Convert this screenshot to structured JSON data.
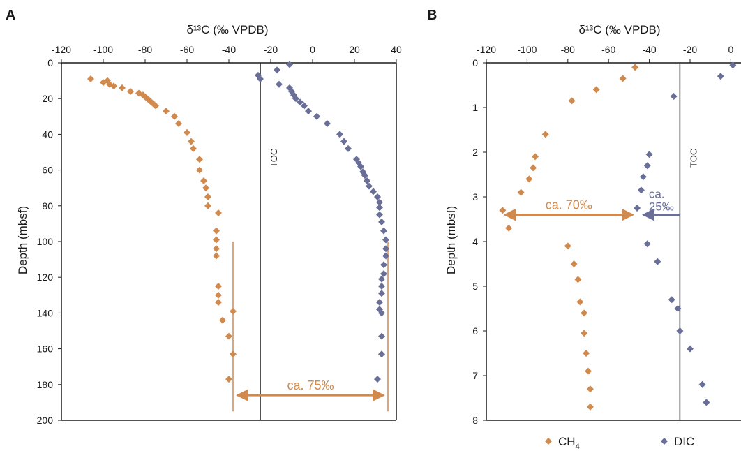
{
  "colors": {
    "ch4": "#d08a4e",
    "dic": "#6a6f98",
    "axis": "#1a1a1a"
  },
  "chart_data": [
    {
      "type": "scatter",
      "panel_label": "A",
      "xlabel": "δ¹³C (‰ VPDB)",
      "ylabel": "Depth (mbsf)",
      "xlim": [
        -120,
        40
      ],
      "ylim": [
        0,
        200
      ],
      "x_ticks": [
        "-120",
        "-100",
        "-80",
        "-60",
        "-40",
        "-20",
        "0",
        "20",
        "40"
      ],
      "y_ticks": [
        "0",
        "20",
        "40",
        "60",
        "80",
        "100",
        "120",
        "140",
        "160",
        "180",
        "200"
      ],
      "x_axis_position": "top",
      "y_axis_inverted": true,
      "reference_line": {
        "label": "TOC",
        "x": -25
      },
      "series": [
        {
          "key": "ch4",
          "points": [
            [
              -106,
              9
            ],
            [
              -98,
              10
            ],
            [
              -100,
              11
            ],
            [
              -97,
              12
            ],
            [
              -95,
              13
            ],
            [
              -91,
              14
            ],
            [
              -87,
              16
            ],
            [
              -83,
              17
            ],
            [
              -81,
              18
            ],
            [
              -80,
              19
            ],
            [
              -79,
              20
            ],
            [
              -78,
              21
            ],
            [
              -77,
              22
            ],
            [
              -76,
              23
            ],
            [
              -75,
              24
            ],
            [
              -70,
              27
            ],
            [
              -66,
              30
            ],
            [
              -64,
              34
            ],
            [
              -60,
              39
            ],
            [
              -58,
              44
            ],
            [
              -57,
              48
            ],
            [
              -54,
              54
            ],
            [
              -54,
              60
            ],
            [
              -52,
              66
            ],
            [
              -51,
              70
            ],
            [
              -50,
              75
            ],
            [
              -50,
              80
            ],
            [
              -45,
              84
            ],
            [
              -46,
              94
            ],
            [
              -46,
              99
            ],
            [
              -46,
              104
            ],
            [
              -46,
              108
            ],
            [
              -45,
              125
            ],
            [
              -45,
              130
            ],
            [
              -45,
              134
            ],
            [
              -38,
              139
            ],
            [
              -43,
              144
            ],
            [
              -40,
              153
            ],
            [
              -38,
              163
            ],
            [
              -40,
              177
            ]
          ]
        },
        {
          "key": "dic",
          "points": [
            [
              -26,
              7
            ],
            [
              -25,
              9
            ],
            [
              -11,
              1
            ],
            [
              -17,
              4
            ],
            [
              -16,
              12
            ],
            [
              -11,
              14
            ],
            [
              -10,
              16
            ],
            [
              -9,
              18
            ],
            [
              -8,
              20
            ],
            [
              -6,
              22
            ],
            [
              -4,
              24
            ],
            [
              -2,
              27
            ],
            [
              2,
              30
            ],
            [
              7,
              34
            ],
            [
              13,
              40
            ],
            [
              15,
              44
            ],
            [
              17,
              48
            ],
            [
              21,
              54
            ],
            [
              22,
              56
            ],
            [
              23,
              58
            ],
            [
              24,
              61
            ],
            [
              25,
              63
            ],
            [
              26,
              66
            ],
            [
              27,
              69
            ],
            [
              29,
              72
            ],
            [
              31,
              75
            ],
            [
              32,
              78
            ],
            [
              32,
              81
            ],
            [
              32,
              85
            ],
            [
              33,
              89
            ],
            [
              34,
              94
            ],
            [
              35,
              99
            ],
            [
              35,
              104
            ],
            [
              35,
              108
            ],
            [
              34,
              113
            ],
            [
              34,
              118
            ],
            [
              33,
              121
            ],
            [
              33,
              125
            ],
            [
              33,
              129
            ],
            [
              32,
              134
            ],
            [
              32,
              138
            ],
            [
              33,
              140
            ],
            [
              33,
              153
            ],
            [
              33,
              163
            ],
            [
              31,
              177
            ]
          ]
        }
      ],
      "range_lines": [
        {
          "x": -38,
          "y": [
            100,
            195
          ]
        },
        {
          "x": 36,
          "y": [
            100,
            195
          ]
        }
      ],
      "annotations": [
        {
          "text": "ca. 75‰",
          "x_from": -36,
          "x_to": 34,
          "y": 186
        }
      ]
    },
    {
      "type": "scatter",
      "panel_label": "B",
      "xlabel": "δ¹³C (‰ VPDB)",
      "ylabel": "Depth (mbsf)",
      "xlim": [
        -120,
        5
      ],
      "ylim": [
        0,
        8
      ],
      "x_ticks": [
        "-120",
        "-100",
        "-80",
        "-60",
        "-40",
        "-20",
        "0"
      ],
      "y_ticks": [
        "0",
        "1",
        "2",
        "3",
        "4",
        "5",
        "6",
        "7",
        "8"
      ],
      "x_axis_position": "top",
      "y_axis_inverted": true,
      "reference_line": {
        "label": "TOC",
        "x": -25
      },
      "series": [
        {
          "key": "ch4",
          "points": [
            [
              -47,
              0.1
            ],
            [
              -53,
              0.35
            ],
            [
              -66,
              0.6
            ],
            [
              -78,
              0.85
            ],
            [
              -91,
              1.6
            ],
            [
              -96,
              2.1
            ],
            [
              -97,
              2.35
            ],
            [
              -99,
              2.6
            ],
            [
              -103,
              2.9
            ],
            [
              -112,
              3.3
            ],
            [
              -109,
              3.7
            ],
            [
              -80,
              4.1
            ],
            [
              -77,
              4.5
            ],
            [
              -75,
              4.85
            ],
            [
              -74,
              5.35
            ],
            [
              -72,
              5.6
            ],
            [
              -72,
              6.05
            ],
            [
              -71,
              6.5
            ],
            [
              -70,
              6.9
            ],
            [
              -69,
              7.3
            ],
            [
              -69,
              7.7
            ]
          ]
        },
        {
          "key": "dic",
          "points": [
            [
              1,
              0.05
            ],
            [
              -5,
              0.3
            ],
            [
              -28,
              0.75
            ],
            [
              -40,
              2.05
            ],
            [
              -41,
              2.3
            ],
            [
              -43,
              2.55
            ],
            [
              -44,
              2.85
            ],
            [
              -46,
              3.25
            ],
            [
              -41,
              4.05
            ],
            [
              -36,
              4.45
            ],
            [
              -29,
              5.3
            ],
            [
              -26,
              5.5
            ],
            [
              -25,
              6.0
            ],
            [
              -20,
              6.4
            ],
            [
              -14,
              7.2
            ],
            [
              -12,
              7.6
            ]
          ]
        }
      ],
      "annotations": [
        {
          "text": "ca. 70‰",
          "x_from": -111,
          "x_to": -48,
          "y": 3.4
        },
        {
          "text": "ca. 25‰",
          "x_from": -25,
          "x_to": -43,
          "y": 3.4
        }
      ],
      "legend": {
        "placement": "bottom",
        "items": [
          {
            "key": "ch4",
            "label": "CH",
            "subscript": "4"
          },
          {
            "key": "dic",
            "label": "DIC",
            "subscript": ""
          }
        ]
      }
    }
  ]
}
